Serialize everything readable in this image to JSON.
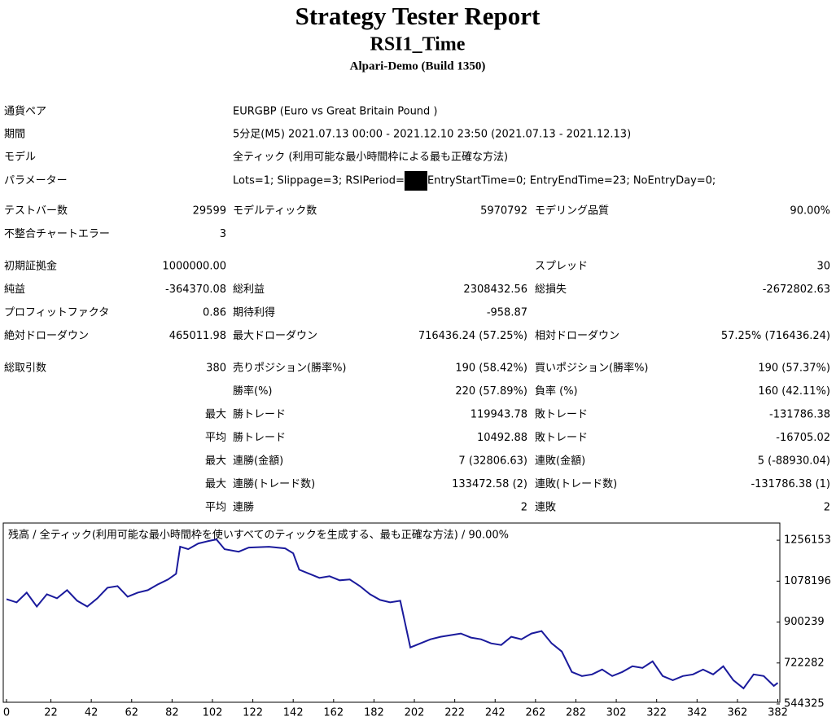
{
  "header": {
    "title": "Strategy Tester Report",
    "name": "RSI1_Time",
    "server": "Alpari-Demo (Build 1350)"
  },
  "info": [
    {
      "label": "通貨ペア",
      "value": "EURGBP (Euro vs Great Britain Pound )"
    },
    {
      "label": "期間",
      "value": "5分足(M5) 2021.07.13 00:00 - 2021.12.10 23:50 (2021.07.13 - 2021.12.13)"
    },
    {
      "label": "モデル",
      "value": "全ティック (利用可能な最小時間枠による最も正確な方法)"
    },
    {
      "label": "パラメーター",
      "value": "Lots=1; Slippage=3; RSIPeriod=",
      "value_after": "EntryStartTime=0; EntryEndTime=23; NoEntryDay=0;"
    }
  ],
  "stats": [
    [
      {
        "l1": "テストバー数",
        "v1": "29599",
        "l2": "モデルティック数",
        "v2": "5970792",
        "l3": "モデリング品質",
        "v3": "90.00%"
      },
      {
        "l1": "不整合チャートエラー",
        "v1": "3"
      }
    ],
    [
      {
        "l1": "初期証拠金",
        "v1": "1000000.00",
        "l3": "スプレッド",
        "v3": "30"
      },
      {
        "l1": "純益",
        "v1": "-364370.08",
        "l2": "総利益",
        "v2": "2308432.56",
        "l3": "総損失",
        "v3": "-2672802.63"
      },
      {
        "l1": "プロフィットファクタ",
        "v1": "0.86",
        "l2": "期待利得",
        "v2": "-958.87"
      },
      {
        "l1": "絶対ドローダウン",
        "v1": "465011.98",
        "l2": "最大ドローダウン",
        "v2": "716436.24 (57.25%)",
        "l3": "相対ドローダウン",
        "v3": "57.25% (716436.24)"
      }
    ],
    [
      {
        "l1": "総取引数",
        "v1": "380",
        "l2": "売りポジション(勝率%)",
        "v2": "190 (58.42%)",
        "l3": "買いポジション(勝率%)",
        "v3": "190 (57.37%)"
      },
      {
        "l2": "勝率(%)",
        "v2": "220 (57.89%)",
        "l3": "負率 (%)",
        "v3": "160 (42.11%)"
      },
      {
        "v1": "最大",
        "l2": "勝トレード",
        "v2": "119943.78",
        "l3": "敗トレード",
        "v3": "-131786.38"
      },
      {
        "v1": "平均",
        "l2": "勝トレード",
        "v2": "10492.88",
        "l3": "敗トレード",
        "v3": "-16705.02"
      },
      {
        "v1": "最大",
        "l2": "連勝(金額)",
        "v2": "7 (32806.63)",
        "l3": "連敗(金額)",
        "v3": "5 (-88930.04)"
      },
      {
        "v1": "最大",
        "l2": "連勝(トレード数)",
        "v2": "133472.58 (2)",
        "l3": "連敗(トレード数)",
        "v3": "-131786.38 (1)"
      },
      {
        "v1": "平均",
        "l2": "連勝",
        "v2": "2",
        "l3": "連敗",
        "v3": "2"
      }
    ]
  ],
  "chart_data": {
    "type": "line",
    "title": "残高 / 全ティック(利用可能な最小時間枠を使いすべてのティックを生成する、最も正確な方法) / 90.00%",
    "x": [
      0,
      5,
      10,
      15,
      20,
      25,
      30,
      35,
      40,
      45,
      50,
      55,
      60,
      65,
      70,
      75,
      80,
      84,
      86,
      90,
      95,
      100,
      104,
      108,
      115,
      120,
      130,
      138,
      142,
      145,
      150,
      155,
      160,
      165,
      170,
      175,
      180,
      185,
      190,
      195,
      200,
      205,
      210,
      215,
      220,
      225,
      230,
      235,
      240,
      245,
      250,
      255,
      260,
      265,
      270,
      275,
      280,
      285,
      290,
      295,
      300,
      305,
      310,
      315,
      320,
      325,
      330,
      335,
      340,
      345,
      350,
      355,
      360,
      365,
      370,
      375,
      380,
      382
    ],
    "series": [
      {
        "color": "#1a1a9c",
        "values": [
          1000000,
          985700,
          1028400,
          967900,
          1021300,
          1003500,
          1039100,
          992800,
          967900,
          1003500,
          1049700,
          1056800,
          1010600,
          1028400,
          1039100,
          1064000,
          1085300,
          1110200,
          1227700,
          1217000,
          1241900,
          1252600,
          1259700,
          1217000,
          1206300,
          1224100,
          1227700,
          1220600,
          1199200,
          1128000,
          1110200,
          1092400,
          1099600,
          1081800,
          1085300,
          1056800,
          1021300,
          996300,
          985700,
          992800,
          789900,
          807700,
          825500,
          836200,
          843300,
          850400,
          832600,
          825500,
          807700,
          800600,
          836200,
          825500,
          850400,
          861100,
          807700,
          772100,
          683200,
          665400,
          672500,
          693800,
          665400,
          683200,
          708100,
          700900,
          729400,
          665400,
          647600,
          665400,
          672500,
          693800,
          672500,
          708100,
          647600,
          612000,
          672500,
          665400,
          622700,
          635630
        ]
      }
    ],
    "xlim": [
      -1.6,
      383
    ],
    "ylim": [
      551470,
      1330900
    ],
    "xticks": [
      0,
      22,
      42,
      62,
      82,
      102,
      122,
      142,
      162,
      182,
      202,
      222,
      242,
      262,
      282,
      302,
      322,
      342,
      362,
      382
    ],
    "yticks": [
      544325,
      722282,
      900239,
      1078196,
      1256153
    ]
  }
}
